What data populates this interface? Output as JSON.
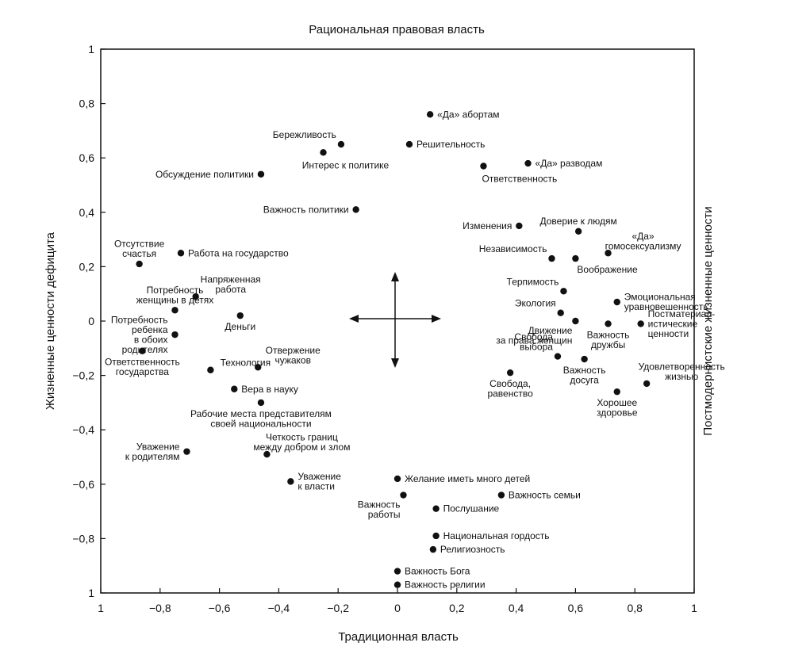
{
  "chart_data": {
    "type": "scatter",
    "title": "Рациональная правовая власть",
    "xlabel": "Традиционная власть",
    "ylabel": "Жизненные ценности дефицита",
    "ylabel_right": "Постмодернистские жизненные ценности",
    "xlim": [
      -1,
      1
    ],
    "ylim": [
      -1,
      1
    ],
    "x_ticks": [
      "1",
      "−0,8",
      "−0,6",
      "−0,4",
      "−0,2",
      "0",
      "0,2",
      "0,4",
      "0,6",
      "0,8",
      "1"
    ],
    "x_tick_values": [
      -1,
      -0.8,
      -0.6,
      -0.4,
      -0.2,
      0,
      0.2,
      0.4,
      0.6,
      0.8,
      1
    ],
    "y_ticks": [
      "1",
      "0,8",
      "0,6",
      "0,4",
      "0,2",
      "0",
      "−0,2",
      "−0,4",
      "−0,6",
      "−0,8",
      "1"
    ],
    "y_tick_values": [
      1,
      0.8,
      0.6,
      0.4,
      0.2,
      0,
      -0.2,
      -0.4,
      -0.6,
      -0.8,
      -1
    ],
    "points": [
      {
        "x": 0.11,
        "y": 0.76,
        "lines": [
          "«Да» абортам"
        ],
        "pos": "r"
      },
      {
        "x": -0.19,
        "y": 0.65,
        "lines": [
          "Бережливость"
        ],
        "pos": "ul"
      },
      {
        "x": -0.25,
        "y": 0.62,
        "lines": [
          "Интерес к политике"
        ],
        "pos": "brr"
      },
      {
        "x": 0.04,
        "y": 0.65,
        "lines": [
          "Решительность"
        ],
        "pos": "r"
      },
      {
        "x": -0.46,
        "y": 0.54,
        "lines": [
          "Обсуждение политики"
        ],
        "pos": "l"
      },
      {
        "x": 0.44,
        "y": 0.58,
        "lines": [
          "«Да» разводам"
        ],
        "pos": "r"
      },
      {
        "x": 0.29,
        "y": 0.57,
        "lines": [
          "Ответственность"
        ],
        "pos": "br"
      },
      {
        "x": -0.14,
        "y": 0.41,
        "lines": [
          "Важность политики"
        ],
        "pos": "l"
      },
      {
        "x": 0.41,
        "y": 0.35,
        "lines": [
          "Изменения"
        ],
        "pos": "l"
      },
      {
        "x": 0.61,
        "y": 0.33,
        "lines": [
          "Доверие к людям"
        ],
        "pos": "u"
      },
      {
        "x": 0.71,
        "y": 0.25,
        "lines": [
          "«Да»",
          "гомосексуализму"
        ],
        "pos": "ur"
      },
      {
        "x": 0.52,
        "y": 0.23,
        "lines": [
          "Независимость"
        ],
        "pos": "ul"
      },
      {
        "x": 0.6,
        "y": 0.23,
        "lines": [
          "Воображение"
        ],
        "pos": "dr"
      },
      {
        "x": -0.87,
        "y": 0.21,
        "lines": [
          "Отсутствие",
          "счастья"
        ],
        "pos": "u"
      },
      {
        "x": -0.73,
        "y": 0.25,
        "lines": [
          "Работа на государство"
        ],
        "pos": "r"
      },
      {
        "x": -0.68,
        "y": 0.09,
        "lines": [
          "Напряженная",
          "работа"
        ],
        "pos": "ur"
      },
      {
        "x": -0.75,
        "y": 0.04,
        "lines": [
          "Потребность",
          "женщины в детях"
        ],
        "pos": "u"
      },
      {
        "x": -0.75,
        "y": -0.05,
        "lines": [
          "Потребность",
          "ребенка",
          "в обоих",
          "родителях"
        ],
        "pos": "l"
      },
      {
        "x": -0.53,
        "y": 0.02,
        "lines": [
          "Деньги"
        ],
        "pos": "d"
      },
      {
        "x": -0.86,
        "y": -0.11,
        "lines": [
          "Ответственность",
          "государства"
        ],
        "pos": "d"
      },
      {
        "x": -0.63,
        "y": -0.18,
        "lines": [
          "Технология"
        ],
        "pos": "ur"
      },
      {
        "x": -0.47,
        "y": -0.17,
        "lines": [
          "Отвержение",
          "чужаков"
        ],
        "pos": "ur"
      },
      {
        "x": -0.55,
        "y": -0.25,
        "lines": [
          "Вера в науку"
        ],
        "pos": "r"
      },
      {
        "x": -0.46,
        "y": -0.3,
        "lines": [
          "Рабочие места представителям",
          "своей национальности"
        ],
        "pos": "d"
      },
      {
        "x": -0.71,
        "y": -0.48,
        "lines": [
          "Уважение",
          "к родителям"
        ],
        "pos": "l"
      },
      {
        "x": -0.44,
        "y": -0.49,
        "lines": [
          "Четкость границ",
          "между добром и злом"
        ],
        "pos": "ur"
      },
      {
        "x": -0.36,
        "y": -0.59,
        "lines": [
          "Уважение",
          "к власти"
        ],
        "pos": "r"
      },
      {
        "x": 0.56,
        "y": 0.11,
        "lines": [
          "Терпимость"
        ],
        "pos": "ul"
      },
      {
        "x": 0.55,
        "y": 0.03,
        "lines": [
          "Экология"
        ],
        "pos": "ul"
      },
      {
        "x": 0.6,
        "y": 0.0,
        "lines": [
          "Движение",
          "за права женщин"
        ],
        "pos": "dl"
      },
      {
        "x": 0.74,
        "y": 0.07,
        "lines": [
          "Эмоциональная",
          "уравновешенность"
        ],
        "pos": "r"
      },
      {
        "x": 0.71,
        "y": -0.01,
        "lines": [
          "Важность",
          "дружбы"
        ],
        "pos": "d"
      },
      {
        "x": 0.82,
        "y": -0.01,
        "lines": [
          "Постматериал-",
          "истические",
          "ценности"
        ],
        "pos": "r"
      },
      {
        "x": 0.54,
        "y": -0.13,
        "lines": [
          "Свобода",
          "выбора"
        ],
        "pos": "ul"
      },
      {
        "x": 0.63,
        "y": -0.14,
        "lines": [
          "Важность",
          "досуга"
        ],
        "pos": "d"
      },
      {
        "x": 0.38,
        "y": -0.19,
        "lines": [
          "Свобода,",
          "равенство"
        ],
        "pos": "d"
      },
      {
        "x": 0.84,
        "y": -0.23,
        "lines": [
          "Удовлетворенность",
          "жизнью"
        ],
        "pos": "ur"
      },
      {
        "x": 0.74,
        "y": -0.26,
        "lines": [
          "Хорошее",
          "здоровье"
        ],
        "pos": "d"
      },
      {
        "x": 0.0,
        "y": -0.58,
        "lines": [
          "Желание иметь много детей"
        ],
        "pos": "r"
      },
      {
        "x": 0.02,
        "y": -0.64,
        "lines": [
          "Важность",
          "работы"
        ],
        "pos": "dl"
      },
      {
        "x": 0.35,
        "y": -0.64,
        "lines": [
          "Важность семьи"
        ],
        "pos": "r"
      },
      {
        "x": 0.13,
        "y": -0.69,
        "lines": [
          "Послушание"
        ],
        "pos": "r"
      },
      {
        "x": 0.13,
        "y": -0.79,
        "lines": [
          "Национальная гордость"
        ],
        "pos": "r"
      },
      {
        "x": 0.12,
        "y": -0.84,
        "lines": [
          "Религиозность"
        ],
        "pos": "r"
      },
      {
        "x": 0.0,
        "y": -0.92,
        "lines": [
          "Важность Бога"
        ],
        "pos": "r"
      },
      {
        "x": 0.0,
        "y": -0.97,
        "lines": [
          "Важность религии"
        ],
        "pos": "r"
      }
    ]
  }
}
